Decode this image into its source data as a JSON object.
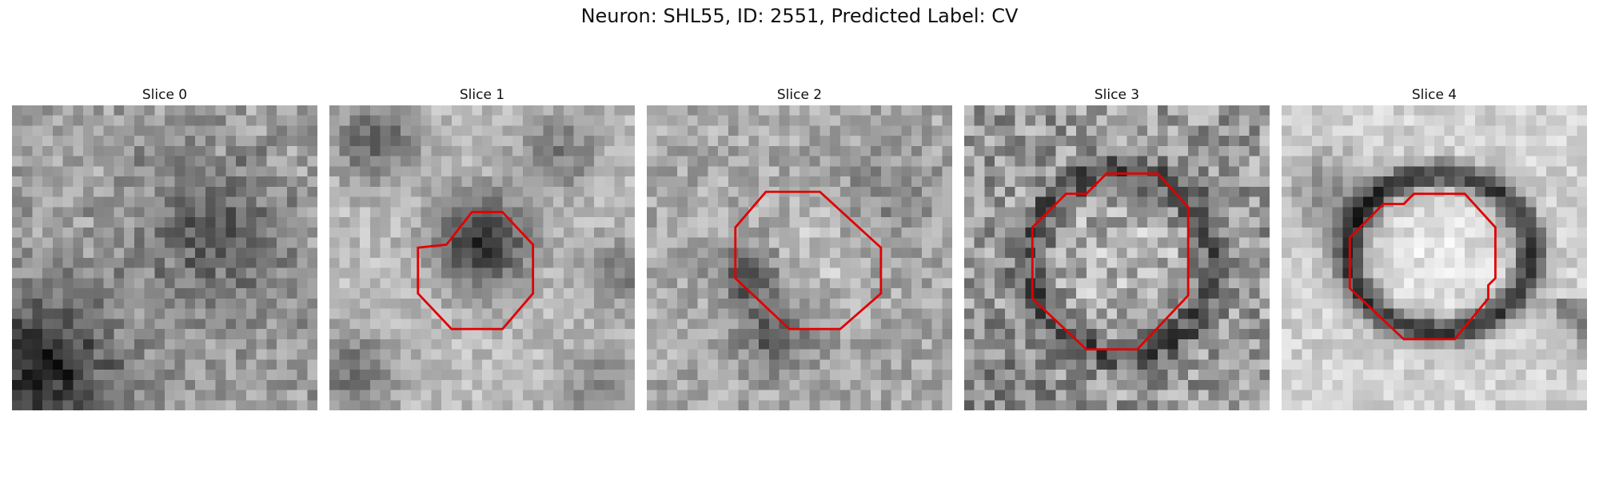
{
  "figure": {
    "title": "Neuron: SHL55, ID: 2551, Predicted Label: CV"
  },
  "panels": [
    {
      "title": "Slice 0",
      "outline": false
    },
    {
      "title": "Slice 1",
      "outline": true
    },
    {
      "title": "Slice 2",
      "outline": true
    },
    {
      "title": "Slice 3",
      "outline": true
    },
    {
      "title": "Slice 4",
      "outline": true
    }
  ],
  "colors": {
    "outline": "#e00000",
    "colormap": "gray"
  }
}
